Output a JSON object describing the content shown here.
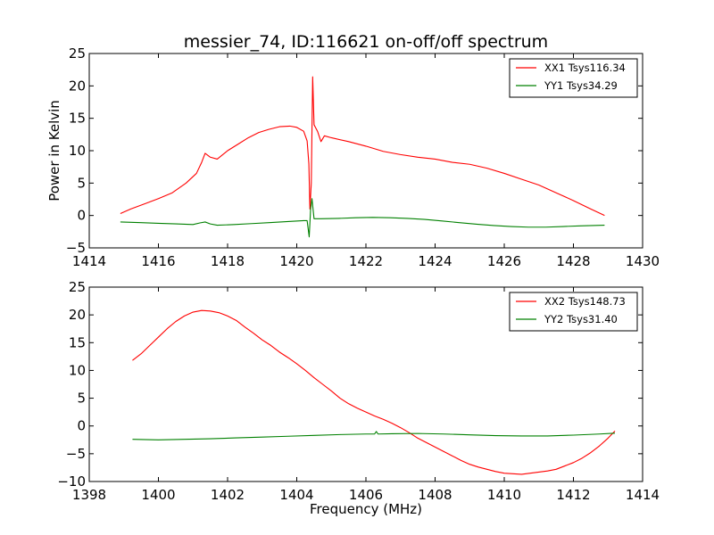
{
  "figure": {
    "title": "messier_74, ID:116621 on-off/off spectrum",
    "ylabel": "Power in Kelvin",
    "xlabel": "Frequency (MHz)"
  },
  "chart_data": [
    {
      "type": "line",
      "title": "messier_74, ID:116621 on-off/off spectrum",
      "xlabel": "",
      "ylabel": "Power in Kelvin",
      "xlim": [
        1414,
        1430
      ],
      "ylim": [
        -5,
        25
      ],
      "xticks": [
        "1414",
        "1416",
        "1418",
        "1420",
        "1422",
        "1424",
        "1426",
        "1428",
        "1430"
      ],
      "yticks": [
        "−5",
        "0",
        "5",
        "10",
        "15",
        "20",
        "25"
      ],
      "grid": false,
      "legend_position": "top-right",
      "series": [
        {
          "name": "XX1 Tsys116.34",
          "color": "#ff0000",
          "points": [
            [
              1414.9,
              0.3
            ],
            [
              1415.2,
              1.0
            ],
            [
              1415.6,
              1.8
            ],
            [
              1416.0,
              2.6
            ],
            [
              1416.4,
              3.5
            ],
            [
              1416.8,
              5.0
            ],
            [
              1417.1,
              6.5
            ],
            [
              1417.25,
              8.2
            ],
            [
              1417.35,
              9.6
            ],
            [
              1417.5,
              9.0
            ],
            [
              1417.7,
              8.7
            ],
            [
              1418.0,
              10.0
            ],
            [
              1418.3,
              11.0
            ],
            [
              1418.6,
              12.0
            ],
            [
              1418.9,
              12.8
            ],
            [
              1419.2,
              13.3
            ],
            [
              1419.5,
              13.7
            ],
            [
              1419.8,
              13.8
            ],
            [
              1420.0,
              13.6
            ],
            [
              1420.2,
              13.0
            ],
            [
              1420.3,
              11.5
            ],
            [
              1420.35,
              8.0
            ],
            [
              1420.38,
              1.0
            ],
            [
              1420.42,
              5.0
            ],
            [
              1420.46,
              21.4
            ],
            [
              1420.5,
              14.0
            ],
            [
              1420.6,
              13.0
            ],
            [
              1420.7,
              11.4
            ],
            [
              1420.8,
              12.3
            ],
            [
              1421.0,
              12.0
            ],
            [
              1421.5,
              11.4
            ],
            [
              1422.0,
              10.7
            ],
            [
              1422.5,
              9.9
            ],
            [
              1423.0,
              9.4
            ],
            [
              1423.5,
              9.0
            ],
            [
              1424.0,
              8.7
            ],
            [
              1424.5,
              8.2
            ],
            [
              1425.0,
              7.9
            ],
            [
              1425.5,
              7.3
            ],
            [
              1426.0,
              6.5
            ],
            [
              1426.5,
              5.6
            ],
            [
              1427.0,
              4.7
            ],
            [
              1427.5,
              3.5
            ],
            [
              1428.0,
              2.3
            ],
            [
              1428.5,
              1.0
            ],
            [
              1428.9,
              0.0
            ]
          ]
        },
        {
          "name": "YY1 Tsys34.29",
          "color": "#008000",
          "points": [
            [
              1414.9,
              -1.0
            ],
            [
              1415.5,
              -1.1
            ],
            [
              1416.0,
              -1.2
            ],
            [
              1416.5,
              -1.3
            ],
            [
              1417.0,
              -1.4
            ],
            [
              1417.2,
              -1.15
            ],
            [
              1417.35,
              -1.0
            ],
            [
              1417.5,
              -1.3
            ],
            [
              1417.7,
              -1.5
            ],
            [
              1418.2,
              -1.4
            ],
            [
              1418.7,
              -1.25
            ],
            [
              1419.2,
              -1.1
            ],
            [
              1419.7,
              -0.95
            ],
            [
              1420.2,
              -0.8
            ],
            [
              1420.3,
              -0.8
            ],
            [
              1420.36,
              -3.3
            ],
            [
              1420.4,
              1.0
            ],
            [
              1420.44,
              2.6
            ],
            [
              1420.5,
              -0.5
            ],
            [
              1420.7,
              -0.5
            ],
            [
              1421.2,
              -0.45
            ],
            [
              1421.7,
              -0.35
            ],
            [
              1422.2,
              -0.3
            ],
            [
              1422.7,
              -0.35
            ],
            [
              1423.2,
              -0.45
            ],
            [
              1423.7,
              -0.6
            ],
            [
              1424.2,
              -0.85
            ],
            [
              1424.7,
              -1.1
            ],
            [
              1425.2,
              -1.35
            ],
            [
              1425.7,
              -1.55
            ],
            [
              1426.2,
              -1.7
            ],
            [
              1426.7,
              -1.8
            ],
            [
              1427.2,
              -1.8
            ],
            [
              1427.7,
              -1.7
            ],
            [
              1428.2,
              -1.6
            ],
            [
              1428.9,
              -1.5
            ]
          ]
        }
      ]
    },
    {
      "type": "line",
      "title": "",
      "xlabel": "Frequency (MHz)",
      "ylabel": "",
      "xlim": [
        1398,
        1414
      ],
      "ylim": [
        -10,
        25
      ],
      "xticks": [
        "1398",
        "1400",
        "1402",
        "1404",
        "1406",
        "1408",
        "1410",
        "1412",
        "1414"
      ],
      "yticks": [
        "−10",
        "−5",
        "0",
        "5",
        "10",
        "15",
        "20",
        "25"
      ],
      "grid": false,
      "legend_position": "top-right",
      "series": [
        {
          "name": "XX2 Tsys148.73",
          "color": "#ff0000",
          "points": [
            [
              1399.25,
              11.8
            ],
            [
              1399.5,
              13.0
            ],
            [
              1399.75,
              14.5
            ],
            [
              1400.0,
              16.0
            ],
            [
              1400.25,
              17.5
            ],
            [
              1400.5,
              18.8
            ],
            [
              1400.75,
              19.8
            ],
            [
              1401.0,
              20.5
            ],
            [
              1401.25,
              20.8
            ],
            [
              1401.5,
              20.7
            ],
            [
              1401.75,
              20.4
            ],
            [
              1402.0,
              19.8
            ],
            [
              1402.25,
              19.0
            ],
            [
              1402.5,
              17.8
            ],
            [
              1402.75,
              16.7
            ],
            [
              1403.0,
              15.5
            ],
            [
              1403.25,
              14.5
            ],
            [
              1403.5,
              13.3
            ],
            [
              1403.75,
              12.3
            ],
            [
              1404.0,
              11.2
            ],
            [
              1404.25,
              10.0
            ],
            [
              1404.5,
              8.7
            ],
            [
              1404.75,
              7.5
            ],
            [
              1405.0,
              6.3
            ],
            [
              1405.25,
              5.0
            ],
            [
              1405.5,
              4.0
            ],
            [
              1405.75,
              3.2
            ],
            [
              1406.0,
              2.5
            ],
            [
              1406.25,
              1.8
            ],
            [
              1406.5,
              1.2
            ],
            [
              1406.75,
              0.5
            ],
            [
              1407.0,
              -0.3
            ],
            [
              1407.25,
              -1.2
            ],
            [
              1407.5,
              -2.2
            ],
            [
              1407.75,
              -3.0
            ],
            [
              1408.0,
              -3.8
            ],
            [
              1408.25,
              -4.6
            ],
            [
              1408.5,
              -5.4
            ],
            [
              1408.75,
              -6.2
            ],
            [
              1409.0,
              -6.9
            ],
            [
              1409.25,
              -7.4
            ],
            [
              1409.5,
              -7.8
            ],
            [
              1409.75,
              -8.2
            ],
            [
              1410.0,
              -8.5
            ],
            [
              1410.25,
              -8.6
            ],
            [
              1410.5,
              -8.7
            ],
            [
              1410.75,
              -8.5
            ],
            [
              1411.0,
              -8.3
            ],
            [
              1411.25,
              -8.1
            ],
            [
              1411.5,
              -7.8
            ],
            [
              1411.75,
              -7.2
            ],
            [
              1412.0,
              -6.6
            ],
            [
              1412.25,
              -5.8
            ],
            [
              1412.5,
              -4.8
            ],
            [
              1412.75,
              -3.6
            ],
            [
              1413.0,
              -2.2
            ],
            [
              1413.2,
              -0.9
            ]
          ]
        },
        {
          "name": "YY2 Tsys31.40",
          "color": "#008000",
          "points": [
            [
              1399.25,
              -2.4
            ],
            [
              1400.0,
              -2.5
            ],
            [
              1400.75,
              -2.4
            ],
            [
              1401.5,
              -2.3
            ],
            [
              1402.25,
              -2.15
            ],
            [
              1403.0,
              -2.0
            ],
            [
              1403.75,
              -1.85
            ],
            [
              1404.5,
              -1.7
            ],
            [
              1405.25,
              -1.55
            ],
            [
              1406.0,
              -1.45
            ],
            [
              1406.25,
              -1.45
            ],
            [
              1406.3,
              -1.0
            ],
            [
              1406.35,
              -1.45
            ],
            [
              1406.75,
              -1.4
            ],
            [
              1407.5,
              -1.35
            ],
            [
              1408.25,
              -1.45
            ],
            [
              1409.0,
              -1.6
            ],
            [
              1409.75,
              -1.75
            ],
            [
              1410.5,
              -1.8
            ],
            [
              1411.25,
              -1.8
            ],
            [
              1412.0,
              -1.65
            ],
            [
              1412.75,
              -1.45
            ],
            [
              1413.2,
              -1.3
            ]
          ]
        }
      ]
    }
  ]
}
